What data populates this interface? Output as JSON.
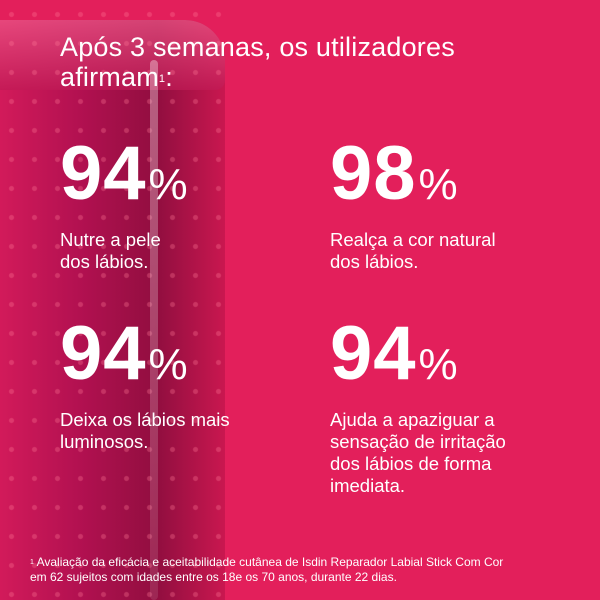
{
  "colors": {
    "background": "#e31f5b",
    "lipstick": "#b01050",
    "text": "#ffffff"
  },
  "title": {
    "text": "Após 3 semanas, os utilizadores",
    "text2": "afirmam",
    "sup": "1",
    "colon": ":"
  },
  "stats": [
    {
      "value": "94",
      "unit": "%",
      "label": "Nutre a pele dos lábios."
    },
    {
      "value": "98",
      "unit": "%",
      "label": "Realça a cor natural dos lábios."
    },
    {
      "value": "94",
      "unit": "%",
      "label": "Deixa os lábios mais luminosos."
    },
    {
      "value": "94",
      "unit": "%",
      "label": "Ajuda a apaziguar a sensação de irritação dos lábios de forma imediata."
    }
  ],
  "footnote": {
    "sup": "1",
    "line1": "Avaliação da eficácia e aceitabilidade cutânea de Isdin Reparador Labial Stick Com Cor",
    "line2": "em 62 sujeitos com idades entre os 18e os 70 anos, durante 22 dias."
  }
}
